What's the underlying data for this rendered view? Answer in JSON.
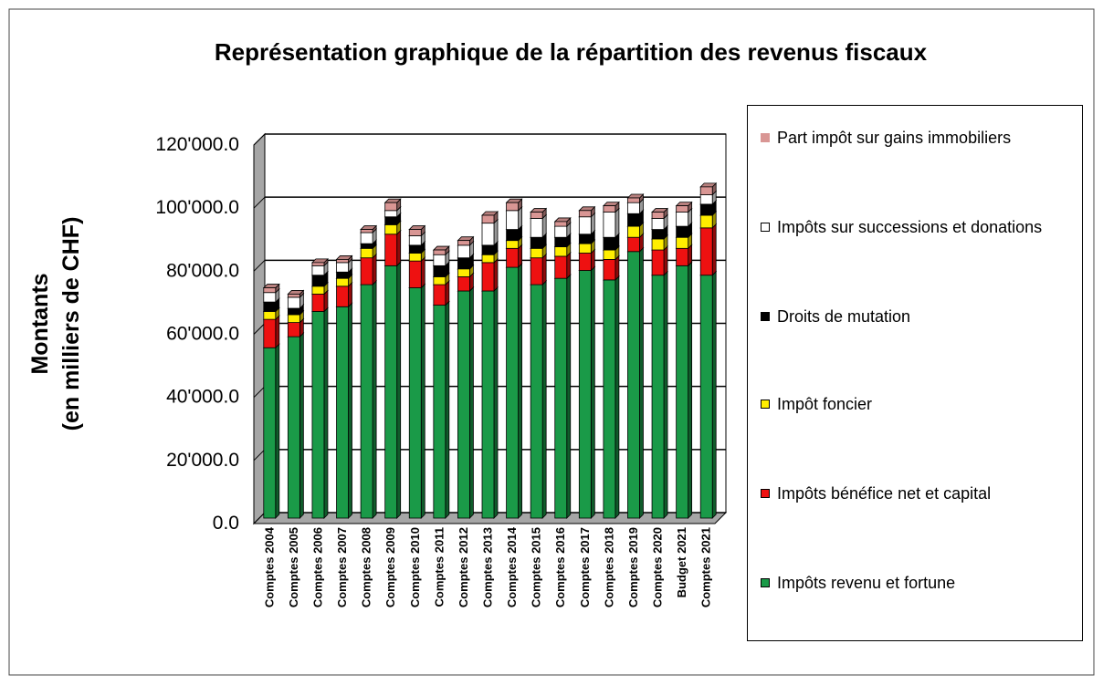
{
  "chart_data": {
    "type": "stacked_bar_3d",
    "title": "Représentation graphique de la répartition des revenus fiscaux",
    "ylabel": [
      "Montants",
      "(en milliers de CHF)"
    ],
    "categories": [
      "Comptes 2004",
      "Comptes 2005",
      "Comptes 2006",
      "Comptes 2007",
      "Comptes 2008",
      "Comptes 2009",
      "Comptes 2010",
      "Comptes 2011",
      "Comptes 2012",
      "Comptes 2013",
      "Comptes 2014",
      "Comptes 2015",
      "Comptes 2016",
      "Comptes 2017",
      "Comptes 2018",
      "Comptes 2019",
      "Comptes 2020",
      "Budget 2021",
      "Comptes 2021"
    ],
    "series": [
      {
        "name": "Impôts revenu et fortune",
        "color": "#1a9a48",
        "values": [
          54000,
          57500,
          65500,
          67000,
          74000,
          80000,
          73000,
          67500,
          72000,
          72000,
          79500,
          74000,
          76000,
          78500,
          75500,
          84500,
          77000,
          80000,
          77000
        ]
      },
      {
        "name": "Impôts bénéfice net et capital",
        "color": "#ee1111",
        "values": [
          9000,
          4500,
          5500,
          6500,
          8500,
          10000,
          8500,
          6500,
          4500,
          9000,
          6000,
          8500,
          7000,
          5500,
          6500,
          4500,
          8000,
          5500,
          15000
        ]
      },
      {
        "name": "Impôt foncier",
        "color": "#ffee00",
        "values": [
          2500,
          2500,
          2500,
          2500,
          3000,
          3000,
          2500,
          2500,
          2500,
          2500,
          2500,
          3000,
          3000,
          3000,
          3000,
          3500,
          3500,
          3500,
          4000
        ]
      },
      {
        "name": "Droits de mutation",
        "color": "#000000",
        "values": [
          3000,
          2000,
          3500,
          2000,
          1500,
          2500,
          2500,
          3500,
          3500,
          3000,
          3500,
          3500,
          3000,
          3000,
          4000,
          4000,
          3000,
          3500,
          3500
        ]
      },
      {
        "name": "Impôts sur successions et donations",
        "color": "#ffffff",
        "values": [
          3000,
          3500,
          3000,
          3000,
          3500,
          2000,
          3000,
          3500,
          4000,
          7000,
          6000,
          6000,
          3500,
          5500,
          8000,
          3500,
          3500,
          4500,
          3000
        ]
      },
      {
        "name": "Part impôt sur gains immobiliers",
        "color": "#d99694",
        "values": [
          1500,
          1000,
          1000,
          1000,
          1000,
          2500,
          2000,
          1500,
          1500,
          2500,
          2500,
          2000,
          1500,
          2000,
          2000,
          1500,
          2000,
          2000,
          2500
        ]
      }
    ],
    "ylim": [
      0,
      120000
    ],
    "yticks": [
      {
        "value": 0,
        "label": "0.0"
      },
      {
        "value": 20000,
        "label": "20'000.0"
      },
      {
        "value": 40000,
        "label": "40'000.0"
      },
      {
        "value": 60000,
        "label": "60'000.0"
      },
      {
        "value": 80000,
        "label": "80'000.0"
      },
      {
        "value": 100000,
        "label": "100'000.0"
      },
      {
        "value": 120000,
        "label": "120'000.0"
      }
    ],
    "grid": true,
    "legend": "right"
  }
}
